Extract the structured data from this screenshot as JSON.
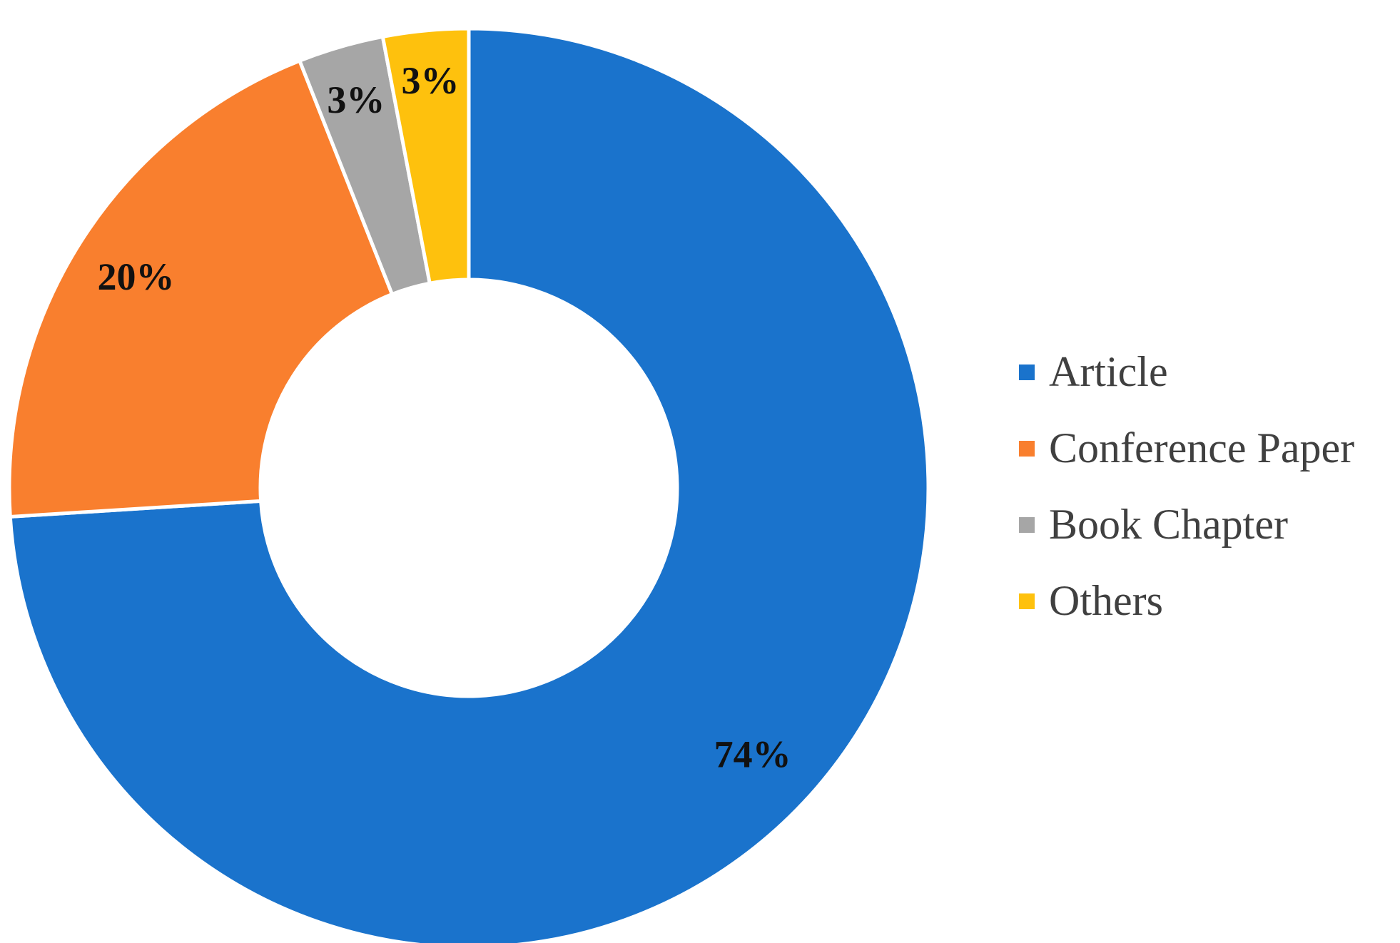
{
  "chart_data": {
    "type": "pie",
    "subtype": "donut",
    "categories": [
      "Article",
      "Conference Paper",
      "Book Chapter",
      "Others"
    ],
    "values": [
      74,
      20,
      3,
      3
    ],
    "data_labels": [
      "74%",
      "20%",
      "3%",
      "3%"
    ],
    "colors": [
      "#1a73cc",
      "#f97f2e",
      "#a6a6a6",
      "#fec10d"
    ],
    "legend_position": "right",
    "title": ""
  }
}
